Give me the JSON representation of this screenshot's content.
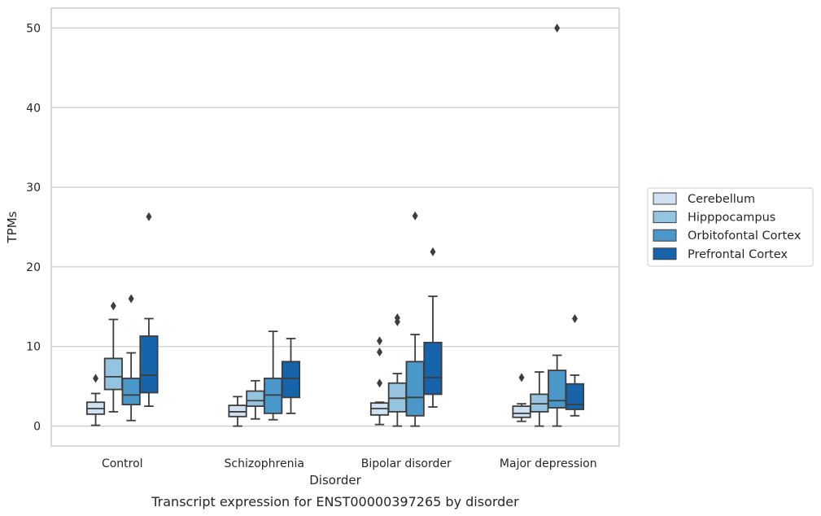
{
  "chart_data": {
    "type": "box",
    "xlabel": "Disorder",
    "ylabel": "TPMs",
    "caption": "Transcript expression for ENST00000397265 by disorder",
    "categories": [
      "Control",
      "Schizophrenia",
      "Bipolar disorder",
      "Major depression"
    ],
    "ylim": [
      -2.5,
      52.5
    ],
    "yticks": [
      0,
      10,
      20,
      30,
      40,
      50
    ],
    "grid": "horizontal",
    "legend_position": "right",
    "series": [
      {
        "name": "Cerebellum",
        "color": "#d0e1f2",
        "boxes": [
          {
            "whisker_low": 0.1,
            "q1": 1.5,
            "median": 2.2,
            "q3": 3.0,
            "whisker_high": 4.1,
            "outliers": [
              6.0
            ]
          },
          {
            "whisker_low": 0.0,
            "q1": 1.2,
            "median": 1.8,
            "q3": 2.6,
            "whisker_high": 3.7,
            "outliers": []
          },
          {
            "whisker_low": 0.2,
            "q1": 1.4,
            "median": 2.2,
            "q3": 2.9,
            "whisker_high": 3.0,
            "outliers": [
              5.4,
              9.3,
              10.7
            ]
          },
          {
            "whisker_low": 0.6,
            "q1": 1.1,
            "median": 1.6,
            "q3": 2.5,
            "whisker_high": 2.8,
            "outliers": [
              6.1
            ]
          }
        ]
      },
      {
        "name": "Hipppocampus",
        "color": "#94c4df",
        "boxes": [
          {
            "whisker_low": 1.8,
            "q1": 4.6,
            "median": 6.2,
            "q3": 8.5,
            "whisker_high": 13.4,
            "outliers": [
              15.1
            ]
          },
          {
            "whisker_low": 0.9,
            "q1": 2.5,
            "median": 3.2,
            "q3": 4.4,
            "whisker_high": 5.7,
            "outliers": []
          },
          {
            "whisker_low": 0.0,
            "q1": 1.8,
            "median": 3.5,
            "q3": 5.4,
            "whisker_high": 6.6,
            "outliers": [
              13.1,
              13.6
            ]
          },
          {
            "whisker_low": 0.0,
            "q1": 1.8,
            "median": 2.8,
            "q3": 4.0,
            "whisker_high": 6.8,
            "outliers": []
          }
        ]
      },
      {
        "name": "Orbitofontal Cortex",
        "color": "#4a98c9",
        "boxes": [
          {
            "whisker_low": 0.7,
            "q1": 2.7,
            "median": 3.9,
            "q3": 6.0,
            "whisker_high": 9.2,
            "outliers": [
              16.0
            ]
          },
          {
            "whisker_low": 0.8,
            "q1": 1.6,
            "median": 3.9,
            "q3": 6.0,
            "whisker_high": 11.9,
            "outliers": []
          },
          {
            "whisker_low": 0.0,
            "q1": 1.3,
            "median": 3.6,
            "q3": 8.1,
            "whisker_high": 11.5,
            "outliers": [
              26.4
            ]
          },
          {
            "whisker_low": 0.0,
            "q1": 2.3,
            "median": 3.2,
            "q3": 7.0,
            "whisker_high": 8.9,
            "outliers": [
              50.0
            ]
          }
        ]
      },
      {
        "name": "Prefrontal Cortex",
        "color": "#1764ab",
        "boxes": [
          {
            "whisker_low": 2.5,
            "q1": 4.2,
            "median": 6.4,
            "q3": 11.3,
            "whisker_high": 13.5,
            "outliers": [
              26.3
            ]
          },
          {
            "whisker_low": 1.6,
            "q1": 3.6,
            "median": 6.0,
            "q3": 8.1,
            "whisker_high": 11.0,
            "outliers": []
          },
          {
            "whisker_low": 2.4,
            "q1": 4.0,
            "median": 6.1,
            "q3": 10.5,
            "whisker_high": 16.3,
            "outliers": [
              21.9
            ]
          },
          {
            "whisker_low": 1.3,
            "q1": 2.1,
            "median": 2.7,
            "q3": 5.3,
            "whisker_high": 6.4,
            "outliers": [
              13.5
            ]
          }
        ]
      }
    ]
  }
}
